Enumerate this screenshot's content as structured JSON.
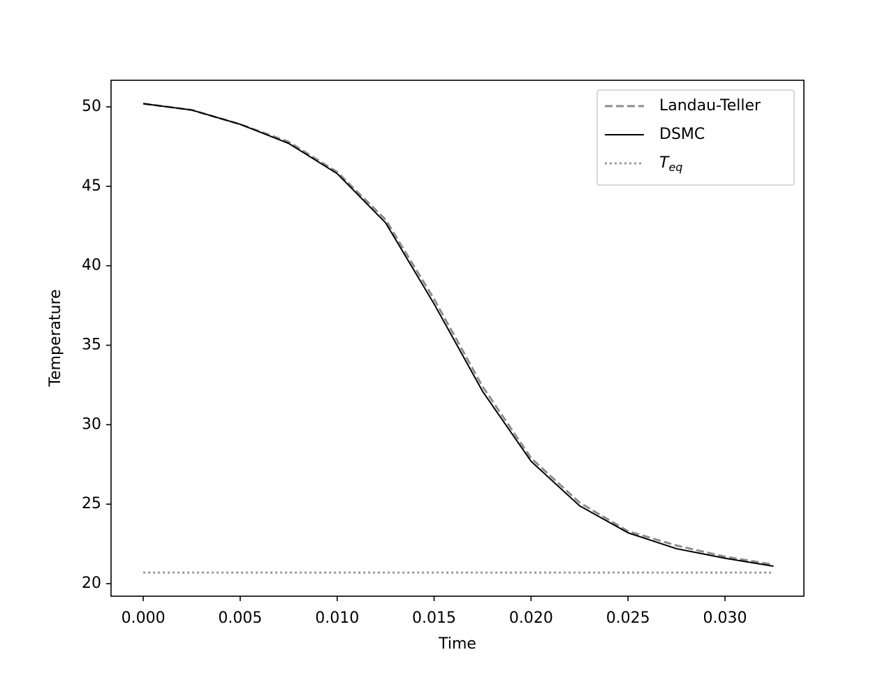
{
  "chart_data": {
    "type": "line",
    "x_label": "Time",
    "y_label": "Temperature",
    "x": [
      0,
      0.0025,
      0.005,
      0.0075,
      0.01,
      0.0125,
      0.015,
      0.0175,
      0.02,
      0.0225,
      0.025,
      0.0275,
      0.03,
      0.0325
    ],
    "series": [
      {
        "name": "Landau-Teller",
        "color": "#8c8c8c",
        "linestyle": "dashed",
        "values": [
          50.2,
          49.8,
          48.9,
          47.8,
          45.9,
          42.9,
          37.9,
          32.4,
          27.9,
          25.1,
          23.3,
          22.4,
          21.7,
          21.2
        ]
      },
      {
        "name": "DSMC",
        "color": "#000000",
        "linestyle": "solid",
        "values": [
          50.2,
          49.8,
          48.9,
          47.7,
          45.8,
          42.7,
          37.6,
          32.1,
          27.7,
          24.9,
          23.2,
          22.2,
          21.6,
          21.1
        ]
      },
      {
        "name": "Teq",
        "color": "#999999",
        "linestyle": "dotted",
        "values": [
          20.7,
          20.7,
          20.7,
          20.7,
          20.7,
          20.7,
          20.7,
          20.7,
          20.7,
          20.7,
          20.7,
          20.7,
          20.7,
          20.7
        ]
      }
    ],
    "xlim": [
      -0.00166,
      0.03407
    ],
    "ylim": [
      19.21,
      51.67
    ],
    "xticks": [
      {
        "value": 0,
        "label": "0.000"
      },
      {
        "value": 0.005,
        "label": "0.005"
      },
      {
        "value": 0.01,
        "label": "0.010"
      },
      {
        "value": 0.015,
        "label": "0.015"
      },
      {
        "value": 0.02,
        "label": "0.020"
      },
      {
        "value": 0.025,
        "label": "0.025"
      },
      {
        "value": 0.03,
        "label": "0.030"
      }
    ],
    "yticks": [
      20,
      25,
      30,
      35,
      40,
      45,
      50
    ],
    "grid": false,
    "legend": "upper right"
  }
}
